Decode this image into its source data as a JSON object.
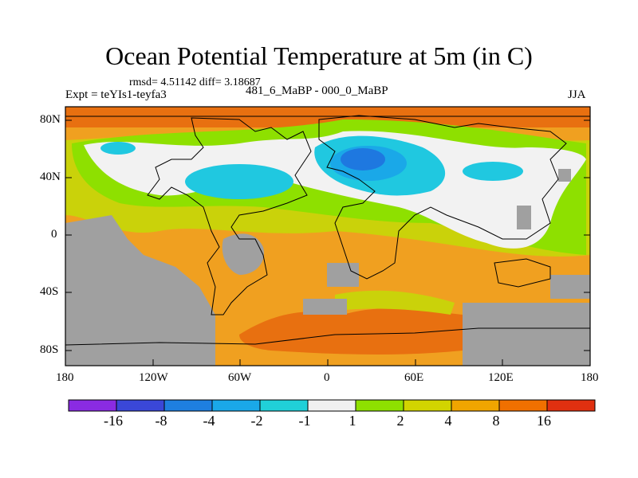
{
  "title": "Ocean Potential Temperature at 5m (in C)",
  "stats": "rmsd= 4.51142  diff= 3.18687",
  "experiment": "Expt = teYIs1-teyfa3",
  "period": "481_6_MaBP - 000_0_MaBP",
  "season": "JJA",
  "lon_ticks": [
    "180",
    "120W",
    "60W",
    "0",
    "60E",
    "120E",
    "180"
  ],
  "lat_ticks": [
    "80N",
    "40N",
    "0",
    "40S",
    "80S"
  ],
  "colorbar": {
    "labels": [
      "-16",
      "-8",
      "-4",
      "-2",
      "-1",
      "1",
      "2",
      "4",
      "8",
      "16"
    ],
    "colors": [
      "#8a2be2",
      "#3a47d8",
      "#1e7fe0",
      "#1aa8e8",
      "#20d0d8",
      "#f0f0f0",
      "#8ee000",
      "#d2d400",
      "#f0a500",
      "#f07000",
      "#e03010"
    ]
  },
  "palette": {
    "land": "#a0a0a0",
    "orange": "#f0a020",
    "dark_orange": "#e87010",
    "yellow_green": "#cad20a",
    "green": "#8ee000",
    "white": "#f2f2f2",
    "cyan": "#20c8e0",
    "light_blue": "#1aa8e8",
    "blue": "#1e78e0"
  }
}
